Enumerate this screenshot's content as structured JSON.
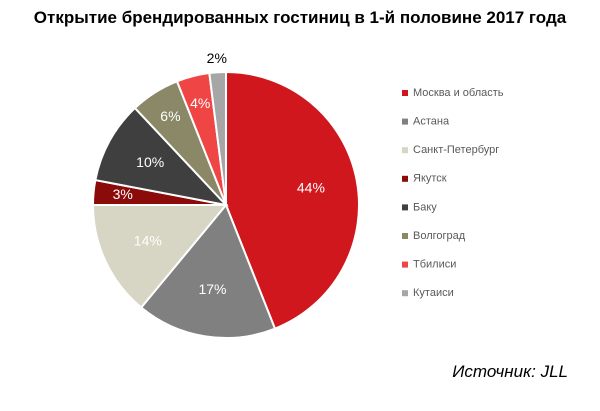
{
  "chart_data": {
    "type": "pie",
    "title": "Открытие брендированных гостиниц в 1-й половине 2017 года",
    "categories": [
      "Москва и область",
      "Астана",
      "Санкт-Петербург",
      "Якутск",
      "Баку",
      "Волгоград",
      "Тбилиси",
      "Кутаиси"
    ],
    "values": [
      44,
      17,
      14,
      3,
      10,
      6,
      4,
      2
    ],
    "value_labels": [
      "44%",
      "17%",
      "14%",
      "3%",
      "10%",
      "6%",
      "4%",
      "2%"
    ],
    "colors": [
      "#d0171d",
      "#808080",
      "#d7d5c3",
      "#8b0b0b",
      "#3f3f3f",
      "#8a8866",
      "#f04545",
      "#a6a6a6"
    ],
    "label_colors": [
      "#ffffff",
      "#ffffff",
      "#ffffff",
      "#ffffff",
      "#ffffff",
      "#ffffff",
      "#ffffff",
      "#000000"
    ],
    "legend_placement": "right"
  },
  "source_note": "Источник: JLL"
}
